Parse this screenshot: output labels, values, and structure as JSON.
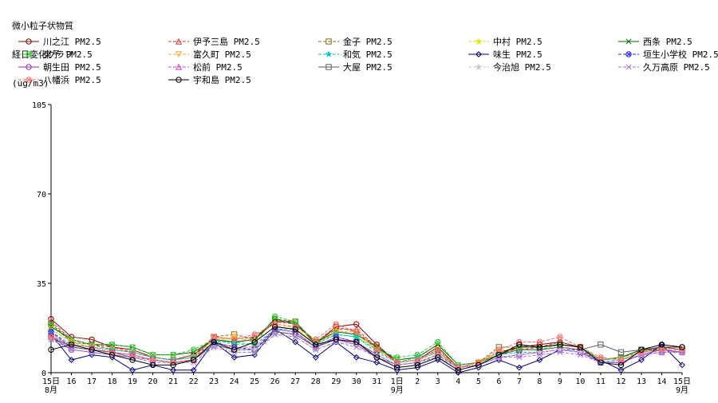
{
  "chart_data": {
    "type": "line",
    "title": [
      "微小粒子状物質",
      "経日変化グラフ"
    ],
    "ylabel": "(ug/m3)",
    "ylim": [
      0,
      105
    ],
    "yticks": [
      0,
      35,
      70,
      105
    ],
    "grid": false,
    "x_tick_labels": [
      "15日",
      "16",
      "17",
      "18",
      "19",
      "20",
      "21",
      "22",
      "23",
      "24",
      "25",
      "26",
      "27",
      "28",
      "29",
      "30",
      "31",
      "1日",
      "2",
      "3",
      "4",
      "5",
      "6",
      "7",
      "8",
      "9",
      "10",
      "11",
      "12",
      "13",
      "14",
      "15日"
    ],
    "x_month_labels": [
      {
        "index": 0,
        "label": "8月"
      },
      {
        "index": 17,
        "label": "9月"
      },
      {
        "index": 31,
        "label": "9月"
      }
    ],
    "series": [
      {
        "name": "川之江 PM2.5",
        "color": "#8b0000",
        "dash": "",
        "marker": "circle",
        "values": [
          21,
          14,
          13,
          10,
          9,
          6,
          5,
          7,
          13,
          12,
          13,
          20,
          20,
          11,
          18,
          19,
          11,
          4,
          5,
          10,
          2,
          4,
          8,
          10,
          11,
          12,
          10,
          5,
          6,
          9,
          10,
          10
        ]
      },
      {
        "name": "伊予三島 PM2.5",
        "color": "#e03030",
        "dash": "4,2",
        "marker": "triangle",
        "values": [
          20,
          13,
          11,
          10,
          8,
          6,
          5,
          7,
          14,
          13,
          14,
          20,
          19,
          12,
          17,
          17,
          10,
          4,
          5,
          9,
          2,
          4,
          8,
          9,
          10,
          12,
          10,
          5,
          6,
          8,
          10,
          9
        ]
      },
      {
        "name": "金子 PM2.5",
        "color": "#8b6914",
        "dash": "4,2",
        "marker": "square",
        "values": [
          19,
          12,
          11,
          9,
          8,
          6,
          5,
          6,
          14,
          15,
          13,
          21,
          20,
          12,
          18,
          16,
          10,
          4,
          5,
          9,
          2,
          4,
          10,
          10,
          10,
          11,
          10,
          5,
          6,
          9,
          10,
          9
        ]
      },
      {
        "name": "中村 PM2.5",
        "color": "#e8e000",
        "dash": "4,2",
        "marker": "star",
        "values": [
          17,
          12,
          10,
          9,
          8,
          6,
          5,
          6,
          12,
          14,
          12,
          18,
          18,
          11,
          16,
          15,
          9,
          4,
          5,
          8,
          2,
          4,
          8,
          9,
          9,
          10,
          9,
          5,
          5,
          8,
          9,
          8
        ]
      },
      {
        "name": "西条 PM2.5",
        "color": "#006400",
        "dash": "",
        "marker": "x",
        "values": [
          18,
          13,
          11,
          11,
          10,
          7,
          7,
          8,
          13,
          12,
          13,
          21,
          19,
          12,
          16,
          15,
          10,
          5,
          6,
          11,
          3,
          4,
          7,
          10,
          10,
          11,
          10,
          5,
          6,
          9,
          9,
          8
        ]
      },
      {
        "name": "東予 PM2.5",
        "color": "#32cd32",
        "dash": "4,2",
        "marker": "xcircle",
        "values": [
          19,
          13,
          11,
          11,
          10,
          7,
          7,
          9,
          13,
          11,
          11,
          22,
          20,
          12,
          15,
          14,
          9,
          6,
          7,
          12,
          3,
          4,
          7,
          9,
          9,
          11,
          10,
          5,
          6,
          8,
          9,
          8
        ]
      },
      {
        "name": "富久町 PM2.5",
        "color": "#ffa040",
        "dash": "4,2",
        "marker": "invtriangle",
        "values": [
          17,
          12,
          10,
          9,
          8,
          6,
          5,
          6,
          13,
          14,
          12,
          18,
          17,
          11,
          16,
          16,
          9,
          4,
          5,
          9,
          2,
          4,
          8,
          9,
          9,
          10,
          9,
          5,
          5,
          8,
          9,
          8
        ]
      },
      {
        "name": "和気 PM2.5",
        "color": "#00c8c8",
        "dash": "4,2",
        "marker": "star",
        "values": [
          16,
          11,
          10,
          9,
          8,
          6,
          5,
          6,
          12,
          12,
          11,
          17,
          17,
          11,
          15,
          14,
          8,
          4,
          6,
          8,
          2,
          3,
          7,
          8,
          8,
          9,
          8,
          4,
          5,
          7,
          8,
          8
        ]
      },
      {
        "name": "味生 PM2.5",
        "color": "#000080",
        "dash": "",
        "marker": "diamond",
        "values": [
          15,
          5,
          7,
          6,
          1,
          3,
          1,
          1,
          12,
          6,
          7,
          17,
          12,
          6,
          12,
          6,
          4,
          1,
          2,
          5,
          0,
          2,
          5,
          2,
          5,
          9,
          8,
          5,
          1,
          5,
          11,
          3
        ]
      },
      {
        "name": "垣生小学校 PM2.5",
        "color": "#1e1eff",
        "dash": "4,2",
        "marker": "xcircle",
        "values": [
          16,
          10,
          9,
          8,
          7,
          5,
          4,
          5,
          12,
          10,
          9,
          17,
          16,
          10,
          14,
          12,
          7,
          3,
          4,
          7,
          2,
          3,
          6,
          7,
          8,
          9,
          9,
          4,
          4,
          7,
          8,
          8
        ]
      },
      {
        "name": "朝生田 PM2.5",
        "color": "#9932cc",
        "dash": "",
        "marker": "circle",
        "values": [
          14,
          9,
          8,
          7,
          6,
          5,
          4,
          5,
          11,
          9,
          9,
          16,
          15,
          10,
          13,
          11,
          6,
          3,
          4,
          7,
          2,
          3,
          6,
          7,
          8,
          9,
          8,
          4,
          4,
          7,
          9,
          8
        ]
      },
      {
        "name": "松前 PM2.5",
        "color": "#d040d0",
        "dash": "4,2",
        "marker": "triangle",
        "values": [
          15,
          10,
          9,
          8,
          7,
          5,
          4,
          5,
          12,
          10,
          10,
          17,
          16,
          10,
          14,
          12,
          7,
          3,
          4,
          7,
          2,
          3,
          6,
          7,
          8,
          9,
          8,
          4,
          4,
          7,
          8,
          8
        ]
      },
      {
        "name": "大屋 PM2.5",
        "color": "#606060",
        "dash": "",
        "marker": "square",
        "values": [
          14,
          10,
          9,
          8,
          6,
          5,
          4,
          5,
          11,
          9,
          9,
          16,
          15,
          10,
          13,
          12,
          7,
          3,
          4,
          7,
          2,
          3,
          7,
          9,
          9,
          10,
          9,
          11,
          8,
          9,
          10,
          9
        ]
      },
      {
        "name": "今治旭 PM2.5",
        "color": "#c8c8c8",
        "dash": "4,2",
        "marker": "star",
        "values": [
          13,
          9,
          8,
          7,
          6,
          5,
          4,
          5,
          10,
          9,
          9,
          15,
          14,
          9,
          12,
          11,
          7,
          3,
          4,
          7,
          2,
          3,
          6,
          7,
          8,
          9,
          8,
          5,
          5,
          7,
          8,
          8
        ]
      },
      {
        "name": "久万高原 PM2.5",
        "color": "#a070e0",
        "dash": "4,2",
        "marker": "x",
        "values": [
          13,
          9,
          8,
          7,
          6,
          4,
          4,
          4,
          10,
          8,
          8,
          15,
          14,
          9,
          12,
          10,
          6,
          3,
          4,
          6,
          2,
          3,
          6,
          6,
          7,
          8,
          7,
          4,
          4,
          7,
          8,
          8
        ]
      },
      {
        "name": "八幡浜 PM2.5",
        "color": "#ff6a6a",
        "dash": "4,2",
        "marker": "xcircle",
        "values": [
          14,
          11,
          10,
          8,
          7,
          5,
          4,
          5,
          14,
          13,
          15,
          19,
          18,
          13,
          19,
          16,
          9,
          4,
          5,
          8,
          2,
          4,
          9,
          12,
          12,
          14,
          10,
          6,
          5,
          8,
          9,
          9
        ]
      },
      {
        "name": "宇和島 PM2.5",
        "color": "#000000",
        "dash": "",
        "marker": "circle",
        "values": [
          9,
          11,
          9,
          7,
          5,
          3,
          3,
          5,
          12,
          9,
          12,
          18,
          17,
          11,
          13,
          12,
          6,
          2,
          3,
          6,
          1,
          3,
          7,
          11,
          10,
          11,
          10,
          4,
          3,
          9,
          11,
          10
        ]
      }
    ]
  }
}
